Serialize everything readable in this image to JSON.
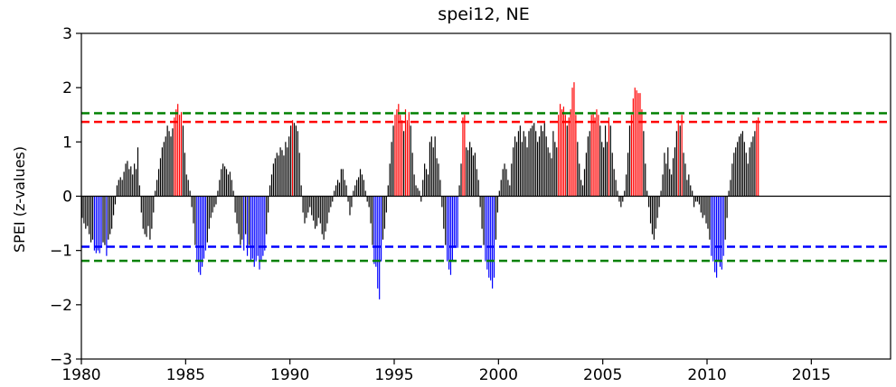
{
  "chart_data": {
    "type": "bar",
    "title": "spei12, NE",
    "xlabel": "",
    "ylabel": "SPEI (z-values)",
    "xlim": [
      1980,
      2018.8
    ],
    "ylim": [
      -3,
      3
    ],
    "xticks": [
      "1980",
      "1985",
      "1990",
      "1995",
      "2000",
      "2005",
      "2010",
      "2015"
    ],
    "yticks": [
      "3",
      "2",
      "1",
      "0",
      "−1",
      "−2",
      "−3"
    ],
    "grid": false,
    "bar_colors": {
      "wet": "#ff0000",
      "dry": "#0000ff",
      "normal": "#000000"
    },
    "thresholds": [
      {
        "value": 1.53,
        "color": "#008000"
      },
      {
        "value": 1.37,
        "color": "#ff0000"
      },
      {
        "value": -0.93,
        "color": "#0000ff"
      },
      {
        "value": -1.19,
        "color": "#008000"
      }
    ],
    "series_step_months": 1,
    "series_start": "1980-01",
    "values": [
      -0.4,
      -0.5,
      -0.6,
      -0.55,
      -0.7,
      -0.85,
      -0.8,
      -1.0,
      -1.05,
      -1.0,
      -1.05,
      -0.95,
      -0.85,
      -0.9,
      -1.1,
      -0.8,
      -0.7,
      -0.6,
      -0.35,
      -0.15,
      0.2,
      0.3,
      0.35,
      0.3,
      0.45,
      0.6,
      0.65,
      0.5,
      0.55,
      0.4,
      0.6,
      0.5,
      0.9,
      0.2,
      -0.3,
      -0.6,
      -0.7,
      -0.75,
      -0.55,
      -0.8,
      -0.6,
      -0.3,
      0.1,
      0.3,
      0.5,
      0.7,
      0.9,
      1.0,
      1.1,
      1.3,
      1.2,
      1.1,
      1.25,
      1.45,
      1.6,
      1.7,
      1.5,
      1.55,
      1.3,
      0.8,
      0.4,
      0.3,
      0.1,
      -0.2,
      -0.5,
      -0.9,
      -1.2,
      -1.4,
      -1.45,
      -1.3,
      -1.15,
      -1.0,
      -0.85,
      -0.6,
      -0.4,
      -0.3,
      -0.2,
      -0.15,
      0.1,
      0.3,
      0.5,
      0.6,
      0.55,
      0.5,
      0.4,
      0.45,
      0.3,
      0.1,
      -0.3,
      -0.5,
      -0.7,
      -0.9,
      -0.8,
      -1.0,
      -0.7,
      -1.1,
      -0.9,
      -1.2,
      -1.15,
      -1.3,
      -1.2,
      -1.1,
      -1.35,
      -1.2,
      -1.1,
      -1.0,
      -0.7,
      -0.3,
      0.2,
      0.4,
      0.6,
      0.7,
      0.8,
      0.75,
      0.9,
      0.85,
      0.75,
      1.0,
      0.9,
      1.1,
      1.3,
      1.4,
      1.35,
      1.3,
      1.2,
      0.8,
      0.2,
      -0.3,
      -0.5,
      -0.4,
      -0.3,
      -0.2,
      -0.35,
      -0.45,
      -0.6,
      -0.55,
      -0.4,
      -0.5,
      -0.7,
      -0.8,
      -0.65,
      -0.5,
      -0.3,
      -0.2,
      -0.1,
      0.1,
      0.2,
      0.3,
      0.25,
      0.5,
      0.5,
      0.3,
      0.2,
      -0.1,
      -0.35,
      -0.2,
      0.1,
      0.2,
      0.3,
      0.35,
      0.5,
      0.4,
      0.3,
      0.1,
      -0.1,
      -0.2,
      -0.5,
      -0.9,
      -1.25,
      -1.3,
      -1.7,
      -1.9,
      -1.2,
      -0.8,
      -0.6,
      -0.3,
      0.2,
      0.6,
      1.0,
      1.3,
      1.5,
      1.6,
      1.7,
      1.5,
      1.4,
      1.2,
      1.6,
      1.4,
      1.55,
      1.3,
      0.8,
      0.4,
      0.2,
      0.15,
      0.1,
      -0.1,
      0.3,
      0.6,
      0.5,
      0.4,
      1.0,
      1.1,
      0.9,
      1.1,
      0.7,
      0.6,
      0.3,
      -0.2,
      -0.6,
      -0.9,
      -1.2,
      -1.35,
      -1.45,
      -1.2,
      -0.95,
      -0.95,
      -0.95,
      0.2,
      0.6,
      1.45,
      1.5,
      0.9,
      0.85,
      1.0,
      0.9,
      0.75,
      0.8,
      0.5,
      0.3,
      -0.2,
      -0.6,
      -0.9,
      -1.2,
      -1.35,
      -1.5,
      -1.55,
      -1.7,
      -1.5,
      -0.8,
      -0.3,
      0.1,
      0.3,
      0.5,
      0.6,
      0.5,
      0.3,
      0.2,
      0.6,
      0.9,
      1.1,
      1.0,
      1.2,
      1.3,
      1.0,
      1.2,
      1.1,
      0.9,
      1.2,
      1.25,
      1.3,
      1.35,
      1.2,
      1.0,
      1.1,
      1.3,
      1.2,
      1.35,
      1.1,
      0.9,
      0.8,
      0.7,
      1.2,
      1.0,
      0.9,
      1.5,
      1.7,
      1.6,
      1.65,
      1.5,
      1.3,
      1.45,
      1.6,
      2.0,
      2.1,
      1.5,
      1.0,
      0.6,
      0.3,
      0.2,
      0.5,
      0.8,
      1.1,
      1.2,
      1.5,
      1.55,
      1.45,
      1.6,
      1.5,
      1.3,
      1.0,
      0.9,
      1.3,
      1.0,
      1.45,
      1.3,
      0.8,
      0.5,
      0.3,
      0.1,
      -0.1,
      -0.2,
      -0.1,
      0.1,
      0.4,
      0.8,
      1.3,
      1.5,
      1.8,
      2.0,
      1.95,
      1.9,
      1.9,
      1.6,
      1.2,
      0.6,
      0.1,
      -0.2,
      -0.5,
      -0.7,
      -0.8,
      -0.6,
      -0.4,
      -0.2,
      0.1,
      0.4,
      0.8,
      0.6,
      0.9,
      0.5,
      0.4,
      0.7,
      0.9,
      1.2,
      1.4,
      1.3,
      1.5,
      0.8,
      0.6,
      0.3,
      0.4,
      0.2,
      0.1,
      -0.2,
      -0.1,
      -0.1,
      -0.15,
      -0.3,
      -0.4,
      -0.35,
      -0.5,
      -0.6,
      -0.8,
      -1.1,
      -1.2,
      -1.4,
      -1.5,
      -1.2,
      -1.3,
      -1.35,
      -1.1,
      -0.8,
      -0.4,
      0.1,
      0.3,
      0.6,
      0.8,
      0.9,
      1.0,
      1.1,
      1.15,
      1.2,
      1.0,
      0.8,
      0.6,
      0.9,
      1.0,
      1.1,
      1.2,
      1.4,
      1.45
    ]
  }
}
